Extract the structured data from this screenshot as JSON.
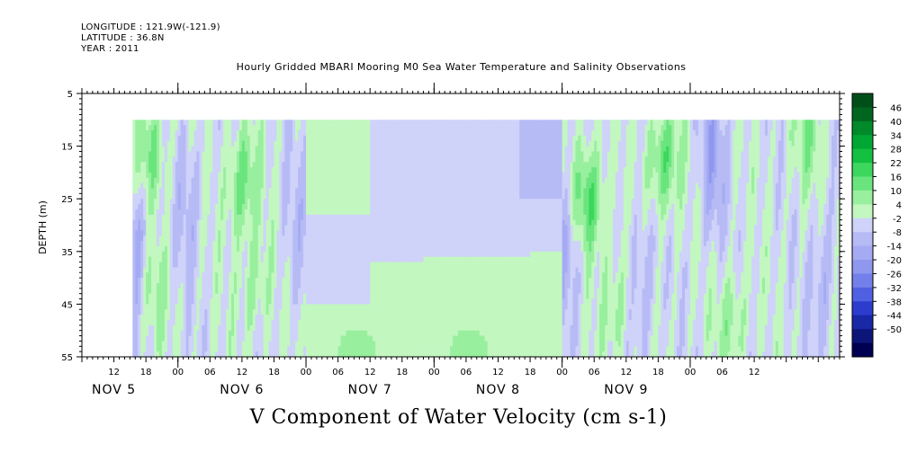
{
  "header": {
    "longitude": "LONGITUDE : 121.9W(-121.9)",
    "latitude": "LATITUDE : 36.8N",
    "year": "YEAR : 2011"
  },
  "title": "Hourly Gridded MBARI Mooring M0 Sea Water Temperature and Salinity Observations",
  "footer": "V Component of Water Velocity (cm s-1)",
  "chart_data": {
    "type": "heatmap",
    "title": "Hourly Gridded MBARI Mooring M0 Sea Water Temperature and Salinity Observations",
    "xlabel": "",
    "ylabel": "DEPTH (m)",
    "variable": "V Component of Water Velocity (cm s-1)",
    "xlim_hours": [
      6,
      148
    ],
    "ylim": [
      55,
      5
    ],
    "y_ticks": [
      5,
      15,
      25,
      35,
      45,
      55
    ],
    "x_tick_labels": [
      {
        "hour": 12,
        "label": "12"
      },
      {
        "hour": 18,
        "label": "18"
      },
      {
        "hour": 24,
        "label": "00"
      },
      {
        "hour": 30,
        "label": "06"
      },
      {
        "hour": 36,
        "label": "12"
      },
      {
        "hour": 42,
        "label": "18"
      },
      {
        "hour": 48,
        "label": "00"
      },
      {
        "hour": 54,
        "label": "06"
      },
      {
        "hour": 60,
        "label": "12"
      },
      {
        "hour": 66,
        "label": "18"
      },
      {
        "hour": 72,
        "label": "00"
      },
      {
        "hour": 78,
        "label": "06"
      },
      {
        "hour": 84,
        "label": "12"
      },
      {
        "hour": 90,
        "label": "18"
      },
      {
        "hour": 96,
        "label": "00"
      },
      {
        "hour": 102,
        "label": "06"
      },
      {
        "hour": 108,
        "label": "12"
      },
      {
        "hour": 114,
        "label": "18"
      },
      {
        "hour": 120,
        "label": "00"
      },
      {
        "hour": 126,
        "label": "06"
      },
      {
        "hour": 132,
        "label": "12"
      }
    ],
    "day_labels": [
      {
        "hour": 12,
        "label": "NOV  5"
      },
      {
        "hour": 36,
        "label": "NOV  6"
      },
      {
        "hour": 60,
        "label": "NOV  7"
      },
      {
        "hour": 84,
        "label": "NOV  8"
      },
      {
        "hour": 108,
        "label": "NOV  9"
      }
    ],
    "data_extent": {
      "start_hour": 15.5,
      "end_hour": 148,
      "top_depth": 10,
      "bottom_depth": 55
    },
    "colorbar": {
      "levels": [
        "46",
        "40",
        "34",
        "28",
        "22",
        "16",
        "10",
        "4",
        "-2",
        "-8",
        "-14",
        "-20",
        "-26",
        "-32",
        "-38",
        "-44",
        "-50"
      ],
      "colors": [
        "#004f1a",
        "#00661f",
        "#008a2a",
        "#00a833",
        "#14c040",
        "#3cd75c",
        "#6ae57e",
        "#98ef9e",
        "#c2f7c0",
        "#cfd2f9",
        "#b6bbf5",
        "#a4abf3",
        "#8f98ee",
        "#7480ea",
        "#5060e2",
        "#2c3ccc",
        "#1828a6",
        "#0c1678",
        "#000052"
      ]
    },
    "regions_summary": [
      {
        "hours": [
          15.5,
          23
        ],
        "depth": [
          10,
          55
        ],
        "value_range": [
          -14,
          28
        ],
        "note": "mixed, green near 15 m and 35-50 m, blue edges"
      },
      {
        "hours": [
          23,
          31
        ],
        "depth": [
          10,
          55
        ],
        "value_range": [
          -8,
          10
        ],
        "note": "blue-lavender streaks"
      },
      {
        "hours": [
          31,
          42
        ],
        "depth": [
          10,
          55
        ],
        "value_range": [
          -8,
          28
        ],
        "note": "green core near 20 m and 40 m"
      },
      {
        "hours": [
          42,
          48
        ],
        "depth": [
          10,
          55
        ],
        "value_range": [
          -8,
          10
        ],
        "note": "alternating thin streaks"
      },
      {
        "hours": [
          48,
          96
        ],
        "depth": [
          10,
          55
        ],
        "value_range": [
          -14,
          10
        ],
        "note": "smooth interpolated field: light green upper-left and bottom, lavender/blue middle"
      },
      {
        "hours": [
          96,
          110
        ],
        "depth": [
          10,
          55
        ],
        "value_range": [
          -14,
          34
        ],
        "note": "strong green core near 25 m"
      },
      {
        "hours": [
          110,
          124
        ],
        "depth": [
          10,
          55
        ],
        "value_range": [
          -14,
          28
        ],
        "note": "green streak near 15-20 m, blue patches"
      },
      {
        "hours": [
          124,
          148
        ],
        "depth": [
          10,
          55
        ],
        "value_range": [
          -14,
          22
        ],
        "note": "mixed, green near bottom and top right"
      }
    ]
  }
}
